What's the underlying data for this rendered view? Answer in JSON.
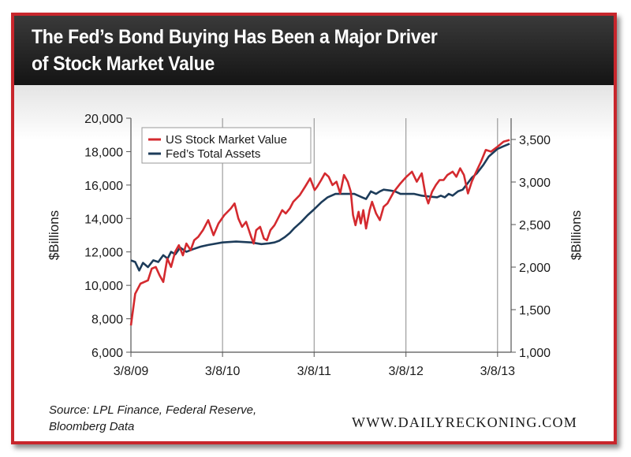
{
  "title_line1": "The Fed’s Bond Buying Has Been a Major Driver",
  "title_line2": "of Stock Market Value",
  "source_line1": "Source: LPL Finance, Federal Reserve,",
  "source_line2": "Bloomberg Data",
  "website": "WWW.DAILYRECKONING.COM",
  "colors": {
    "frame": "#c8262c",
    "stock_series": "#d42a2f",
    "fed_series": "#1d3c5a"
  },
  "chart_data": {
    "type": "line",
    "title": "The Fed’s Bond Buying Has Been a Major Driver of Stock Market Value",
    "xlabel": "",
    "ylabel_left": "$Billions",
    "ylabel_right": "$Billions",
    "x_ticks": [
      "3/8/09",
      "3/8/10",
      "3/8/11",
      "3/8/12",
      "3/8/13"
    ],
    "x_range": [
      "2009-03-08",
      "2013-05-01"
    ],
    "ylim_left": [
      6000,
      20000
    ],
    "ylim_right": [
      1000,
      3750
    ],
    "yticks_left": [
      "6,000",
      "8,000",
      "10,000",
      "12,000",
      "14,000",
      "16,000",
      "18,000",
      "20,000"
    ],
    "yticks_right": [
      "1,000",
      "1,500",
      "2,000",
      "2,500",
      "3,000",
      "3,500"
    ],
    "grid": "vertical at x ticks",
    "legend_position": "top-left",
    "series": [
      {
        "name": "US Stock Market Value",
        "axis": "left",
        "color": "#d42a2f",
        "points": [
          [
            "2009-03-08",
            7600
          ],
          [
            "2009-03-25",
            9500
          ],
          [
            "2009-04-15",
            10100
          ],
          [
            "2009-05-15",
            10300
          ],
          [
            "2009-05-30",
            11000
          ],
          [
            "2009-06-15",
            11100
          ],
          [
            "2009-06-30",
            10600
          ],
          [
            "2009-07-15",
            10200
          ],
          [
            "2009-07-31",
            11600
          ],
          [
            "2009-08-15",
            11100
          ],
          [
            "2009-08-31",
            12000
          ],
          [
            "2009-09-15",
            12400
          ],
          [
            "2009-10-01",
            11800
          ],
          [
            "2009-10-15",
            12500
          ],
          [
            "2009-11-01",
            12100
          ],
          [
            "2009-11-15",
            12700
          ],
          [
            "2009-12-01",
            12900
          ],
          [
            "2009-12-20",
            13300
          ],
          [
            "2010-01-10",
            13900
          ],
          [
            "2010-01-31",
            13000
          ],
          [
            "2010-02-20",
            13700
          ],
          [
            "2010-03-15",
            14200
          ],
          [
            "2010-04-10",
            14600
          ],
          [
            "2010-04-25",
            14900
          ],
          [
            "2010-05-10",
            14000
          ],
          [
            "2010-05-25",
            13500
          ],
          [
            "2010-06-10",
            13800
          ],
          [
            "2010-06-30",
            12900
          ],
          [
            "2010-07-10",
            12500
          ],
          [
            "2010-07-20",
            13300
          ],
          [
            "2010-08-05",
            13500
          ],
          [
            "2010-08-20",
            12800
          ],
          [
            "2010-09-01",
            12700
          ],
          [
            "2010-09-15",
            13300
          ],
          [
            "2010-10-01",
            13600
          ],
          [
            "2010-10-15",
            14000
          ],
          [
            "2010-11-01",
            14500
          ],
          [
            "2010-11-15",
            14300
          ],
          [
            "2010-12-01",
            14600
          ],
          [
            "2010-12-15",
            15000
          ],
          [
            "2011-01-10",
            15400
          ],
          [
            "2011-01-31",
            15900
          ],
          [
            "2011-02-20",
            16400
          ],
          [
            "2011-03-10",
            15700
          ],
          [
            "2011-03-20",
            15900
          ],
          [
            "2011-04-05",
            16300
          ],
          [
            "2011-04-20",
            16700
          ],
          [
            "2011-05-05",
            16500
          ],
          [
            "2011-05-20",
            16000
          ],
          [
            "2011-06-05",
            16200
          ],
          [
            "2011-06-20",
            15500
          ],
          [
            "2011-07-05",
            16600
          ],
          [
            "2011-07-20",
            16200
          ],
          [
            "2011-08-01",
            15600
          ],
          [
            "2011-08-10",
            14200
          ],
          [
            "2011-08-20",
            13600
          ],
          [
            "2011-09-01",
            14400
          ],
          [
            "2011-09-10",
            13700
          ],
          [
            "2011-09-20",
            14500
          ],
          [
            "2011-10-01",
            13400
          ],
          [
            "2011-10-15",
            14500
          ],
          [
            "2011-10-25",
            15000
          ],
          [
            "2011-11-10",
            14300
          ],
          [
            "2011-11-25",
            13900
          ],
          [
            "2011-12-10",
            14700
          ],
          [
            "2011-12-25",
            14900
          ],
          [
            "2012-01-20",
            15600
          ],
          [
            "2012-02-15",
            16100
          ],
          [
            "2012-03-10",
            16500
          ],
          [
            "2012-04-01",
            16800
          ],
          [
            "2012-04-20",
            16200
          ],
          [
            "2012-05-10",
            16700
          ],
          [
            "2012-05-25",
            15400
          ],
          [
            "2012-06-05",
            14900
          ],
          [
            "2012-06-20",
            15600
          ],
          [
            "2012-07-05",
            16000
          ],
          [
            "2012-07-20",
            16300
          ],
          [
            "2012-08-05",
            16300
          ],
          [
            "2012-08-20",
            16600
          ],
          [
            "2012-09-10",
            16800
          ],
          [
            "2012-09-25",
            16500
          ],
          [
            "2012-10-10",
            17000
          ],
          [
            "2012-10-25",
            16600
          ],
          [
            "2012-11-10",
            15500
          ],
          [
            "2012-11-25",
            16200
          ],
          [
            "2012-12-10",
            16700
          ],
          [
            "2013-01-01",
            17400
          ],
          [
            "2013-01-20",
            18100
          ],
          [
            "2013-02-10",
            18000
          ],
          [
            "2013-03-08",
            18300
          ],
          [
            "2013-04-01",
            18600
          ],
          [
            "2013-04-25",
            18700
          ]
        ]
      },
      {
        "name": "Fed’s Total Assets",
        "axis": "right",
        "color": "#1d3c5a",
        "points": [
          [
            "2009-03-08",
            2080
          ],
          [
            "2009-03-25",
            2060
          ],
          [
            "2009-04-10",
            1960
          ],
          [
            "2009-04-25",
            2050
          ],
          [
            "2009-05-15",
            2000
          ],
          [
            "2009-06-05",
            2080
          ],
          [
            "2009-06-25",
            2060
          ],
          [
            "2009-07-15",
            2140
          ],
          [
            "2009-08-01",
            2100
          ],
          [
            "2009-08-15",
            2180
          ],
          [
            "2009-09-01",
            2150
          ],
          [
            "2009-09-20",
            2230
          ],
          [
            "2009-10-15",
            2180
          ],
          [
            "2009-11-10",
            2210
          ],
          [
            "2009-12-10",
            2240
          ],
          [
            "2010-01-10",
            2260
          ],
          [
            "2010-03-08",
            2290
          ],
          [
            "2010-05-01",
            2300
          ],
          [
            "2010-07-01",
            2290
          ],
          [
            "2010-08-10",
            2270
          ],
          [
            "2010-09-10",
            2280
          ],
          [
            "2010-10-01",
            2290
          ],
          [
            "2010-10-20",
            2310
          ],
          [
            "2010-11-10",
            2350
          ],
          [
            "2010-12-01",
            2400
          ],
          [
            "2010-12-20",
            2460
          ],
          [
            "2011-01-15",
            2530
          ],
          [
            "2011-02-10",
            2610
          ],
          [
            "2011-03-08",
            2680
          ],
          [
            "2011-04-05",
            2760
          ],
          [
            "2011-05-01",
            2820
          ],
          [
            "2011-06-01",
            2860
          ],
          [
            "2011-07-15",
            2860
          ],
          [
            "2011-08-15",
            2860
          ],
          [
            "2011-09-15",
            2820
          ],
          [
            "2011-10-01",
            2800
          ],
          [
            "2011-10-20",
            2890
          ],
          [
            "2011-11-10",
            2860
          ],
          [
            "2011-11-25",
            2890
          ],
          [
            "2011-12-10",
            2910
          ],
          [
            "2012-01-05",
            2900
          ],
          [
            "2012-01-25",
            2890
          ],
          [
            "2012-02-15",
            2860
          ],
          [
            "2012-03-10",
            2860
          ],
          [
            "2012-04-10",
            2860
          ],
          [
            "2012-05-10",
            2840
          ],
          [
            "2012-06-10",
            2830
          ],
          [
            "2012-07-10",
            2820
          ],
          [
            "2012-07-25",
            2840
          ],
          [
            "2012-08-10",
            2820
          ],
          [
            "2012-08-25",
            2860
          ],
          [
            "2012-09-10",
            2840
          ],
          [
            "2012-10-01",
            2890
          ],
          [
            "2012-10-20",
            2910
          ],
          [
            "2012-11-10",
            2990
          ],
          [
            "2012-11-25",
            3050
          ],
          [
            "2012-12-15",
            3100
          ],
          [
            "2013-01-10",
            3200
          ],
          [
            "2013-02-01",
            3300
          ],
          [
            "2013-03-08",
            3390
          ],
          [
            "2013-04-01",
            3420
          ],
          [
            "2013-04-25",
            3450
          ]
        ]
      }
    ]
  }
}
